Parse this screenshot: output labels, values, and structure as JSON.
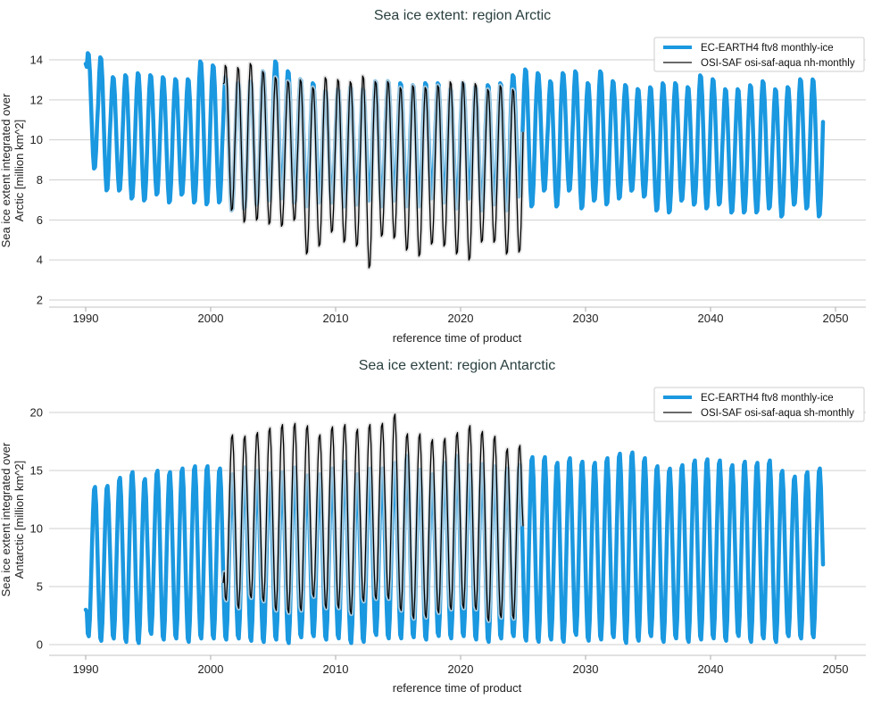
{
  "chart_data": [
    {
      "type": "line",
      "title": "Sea ice extent: region Arctic",
      "xlabel": "reference time of product",
      "ylabel_line1": "Sea ice extent integrated over",
      "ylabel_line2": "Arctic [million km^2]",
      "xlim": [
        1987.5,
        2052.5
      ],
      "ylim": [
        1.6,
        15
      ],
      "xticks": [
        1990,
        2000,
        2010,
        2020,
        2030,
        2040,
        2050
      ],
      "yticks": [
        2,
        4,
        6,
        8,
        10,
        12,
        14
      ],
      "grid": "horizontal",
      "legend_position": "top-right",
      "series": [
        {
          "name": "EC-EARTH4 ftv8 monthly-ice",
          "color": "#1a98e0",
          "start_year": 1990,
          "start_value": 13.8,
          "end_value": 10.9,
          "annual_max": [
            14.4,
            14.2,
            13.2,
            13.3,
            13.4,
            13.3,
            13.2,
            13.1,
            13.1,
            14.0,
            13.8,
            13.2,
            12.9,
            13.0,
            13.5,
            14.0,
            13.5,
            13.1,
            12.9,
            12.5,
            12.6,
            12.7,
            12.6,
            13.0,
            13.0,
            12.9,
            12.8,
            12.9,
            12.9,
            12.6,
            12.9,
            12.7,
            12.8,
            12.9,
            13.3,
            13.6,
            13.4,
            13.0,
            13.4,
            13.5,
            12.9,
            13.5,
            13.0,
            12.8,
            12.6,
            12.7,
            12.9,
            12.9,
            12.7,
            13.3,
            13.1,
            12.6,
            12.6,
            12.8,
            13.0,
            12.6,
            12.7,
            13.1,
            13.1
          ],
          "annual_min": [
            8.5,
            7.4,
            7.4,
            7.0,
            6.9,
            7.2,
            6.8,
            7.2,
            6.8,
            6.7,
            6.8,
            6.4,
            6.5,
            6.7,
            6.9,
            7.0,
            6.8,
            6.6,
            6.8,
            6.8,
            6.6,
            6.7,
            6.9,
            6.6,
            6.9,
            6.6,
            6.6,
            7.0,
            6.8,
            6.5,
            7.0,
            6.4,
            6.7,
            6.4,
            7.1,
            6.6,
            7.4,
            6.6,
            7.4,
            6.5,
            6.9,
            6.7,
            7.0,
            7.4,
            7.1,
            6.4,
            6.3,
            6.9,
            6.7,
            6.5,
            6.7,
            6.3,
            6.3,
            6.3,
            6.5,
            6.1,
            6.7,
            6.5,
            6.1
          ]
        },
        {
          "name": "OSI-SAF osi-saf-aqua nh-monthly",
          "color": "#000000",
          "uncertainty_color": "#dddddd",
          "start_year": 2001,
          "start_value": 12.8,
          "end_value": 10.4,
          "annual_max": [
            13.8,
            13.7,
            13.9,
            13.5,
            13.2,
            13.0,
            13.1,
            12.7,
            13.2,
            13.1,
            13.0,
            13.3,
            13.0,
            13.0,
            12.7,
            12.8,
            12.7,
            12.8,
            13.0,
            13.0,
            12.9,
            12.6,
            12.8,
            12.6
          ],
          "annual_min": [
            6.4,
            5.8,
            5.9,
            5.7,
            5.6,
            5.9,
            4.2,
            4.6,
            5.3,
            4.8,
            4.6,
            3.5,
            5.1,
            5.0,
            4.4,
            4.1,
            4.7,
            4.6,
            4.2,
            3.9,
            4.8,
            4.8,
            4.2,
            4.3
          ]
        }
      ]
    },
    {
      "type": "line",
      "title": "Sea ice extent: region Antarctic",
      "xlabel": "reference time of product",
      "ylabel_line1": "Sea ice extent integrated over",
      "ylabel_line2": "Antarctic [million km^2]",
      "xlim": [
        1987.5,
        2052.5
      ],
      "ylim": [
        -0.9,
        21
      ],
      "xticks": [
        1990,
        2000,
        2010,
        2020,
        2030,
        2040,
        2050
      ],
      "yticks": [
        0,
        5,
        10,
        15,
        20
      ],
      "grid": "horizontal",
      "legend_position": "top-right",
      "series": [
        {
          "name": "EC-EARTH4 ftv8 monthly-ice",
          "color": "#1a98e0",
          "start_year": 1990,
          "start_value": 3.0,
          "end_value": 6.9,
          "annual_max": [
            13.7,
            13.8,
            14.5,
            15.0,
            14.4,
            15.1,
            15.0,
            15.3,
            15.5,
            15.5,
            15.3,
            14.8,
            15.4,
            15.1,
            14.9,
            15.0,
            15.4,
            14.7,
            14.8,
            15.3,
            15.9,
            14.8,
            15.3,
            15.3,
            15.8,
            16.4,
            15.2,
            14.8,
            15.8,
            16.4,
            15.6,
            15.7,
            15.5,
            15.3,
            15.6,
            16.3,
            16.3,
            15.8,
            16.2,
            15.9,
            15.8,
            16.2,
            16.6,
            16.7,
            16.2,
            15.5,
            15.3,
            15.6,
            16.0,
            16.1,
            16.0,
            15.6,
            15.9,
            15.8,
            16.0,
            15.1,
            14.6,
            15.0,
            15.3
          ],
          "annual_min": [
            0.6,
            0.2,
            0.4,
            0.1,
            0.0,
            0.8,
            0.3,
            0.4,
            0.1,
            0.4,
            0.4,
            0.3,
            0.4,
            0.2,
            0.1,
            0.3,
            0.0,
            0.5,
            0.6,
            0.3,
            0.4,
            0.0,
            0.1,
            0.7,
            0.4,
            0.4,
            0.5,
            0.3,
            0.6,
            0.4,
            0.6,
            0.3,
            0.1,
            0.4,
            0.6,
            0.2,
            0.1,
            0.3,
            0.1,
            0.7,
            0.2,
            0.3,
            0.5,
            0.0,
            0.2,
            0.6,
            0.1,
            0.4,
            0.1,
            0.3,
            0.4,
            0.2,
            0.6,
            0.1,
            0.4,
            0.1,
            0.6,
            0.4,
            0.5
          ]
        },
        {
          "name": "OSI-SAF osi-saf-aqua sh-monthly",
          "color": "#000000",
          "uncertainty_color": "#dddddd",
          "start_year": 2001,
          "start_value": 5.3,
          "end_value": 10.2,
          "annual_max": [
            18.2,
            18.1,
            18.4,
            18.8,
            19.1,
            19.2,
            19.0,
            18.2,
            18.9,
            19.1,
            18.7,
            19.1,
            19.2,
            20.0,
            18.3,
            18.3,
            17.8,
            17.9,
            18.4,
            19.0,
            18.5,
            18.1,
            17.0,
            17.3
          ],
          "annual_min": [
            3.7,
            3.0,
            3.9,
            3.6,
            2.8,
            2.6,
            2.8,
            4.0,
            3.0,
            3.0,
            2.5,
            3.6,
            3.8,
            3.8,
            2.8,
            2.1,
            2.2,
            2.6,
            2.9,
            3.0,
            2.9,
            1.9,
            2.2,
            2.1
          ]
        }
      ]
    }
  ]
}
